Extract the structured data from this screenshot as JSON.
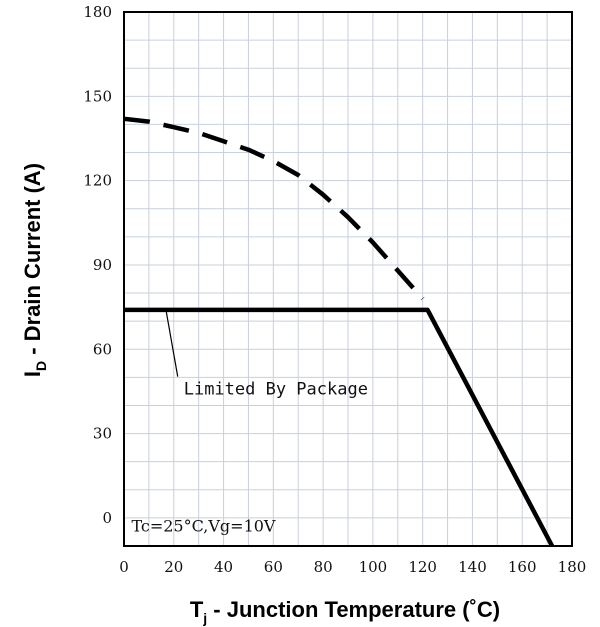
{
  "chart_data": {
    "type": "line",
    "xlabel_main": "T",
    "xlabel_sub": "j",
    "xlabel_rest": " - Junction Temperature (˚C)",
    "ylabel_main": "I",
    "ylabel_sub": "D",
    "ylabel_rest": " - Drain Current (A)",
    "xlim": [
      0,
      180
    ],
    "ylim": [
      -10,
      180
    ],
    "x_ticks": [
      "0",
      "20",
      "40",
      "60",
      "80",
      "100",
      "120",
      "140",
      "160",
      "180"
    ],
    "y_ticks": [
      {
        "label": "180",
        "value": 180
      },
      {
        "label": "150",
        "value": 150
      },
      {
        "label": "120",
        "value": 120
      },
      {
        "label": "90",
        "value": 90
      },
      {
        "label": "60",
        "value": 60
      },
      {
        "label": "30",
        "value": 30
      },
      {
        "label": "0",
        "value": 0
      }
    ],
    "grid": true,
    "series": [
      {
        "style": "dashed",
        "x": [
          0,
          10,
          20,
          30,
          40,
          50,
          60,
          70,
          80,
          90,
          100,
          110,
          115,
          120
        ],
        "y": [
          142,
          141,
          139,
          137,
          134,
          131,
          127,
          122,
          115,
          107,
          98,
          88,
          83,
          78
        ]
      },
      {
        "style": "solid",
        "x": [
          0,
          122,
          172
        ],
        "y": [
          74,
          74,
          -10
        ]
      }
    ],
    "annotations": [
      {
        "text": "Limited By Package",
        "x": 24,
        "y": 46,
        "arrow_to": [
          17,
          74
        ]
      },
      {
        "text": "Tc=25°C,Vg=10V",
        "x": 3,
        "y": -3
      }
    ]
  }
}
